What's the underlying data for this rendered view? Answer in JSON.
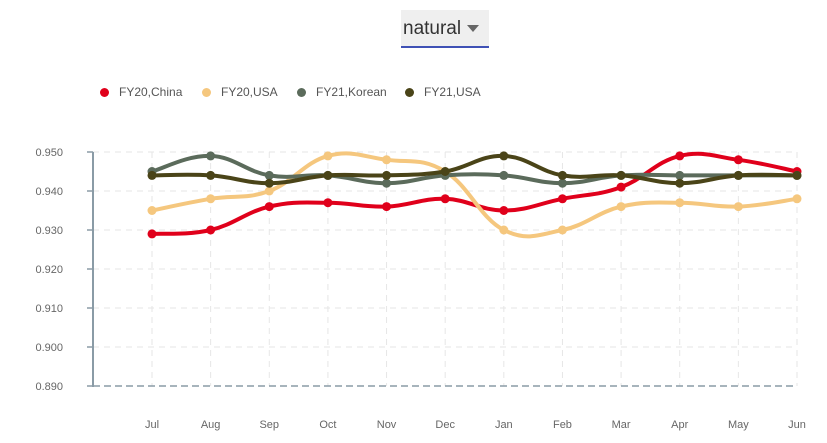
{
  "scale_select": {
    "value": "natural"
  },
  "chart_data": {
    "type": "line",
    "categories": [
      "Jul",
      "Aug",
      "Sep",
      "Oct",
      "Nov",
      "Dec",
      "Jan",
      "Feb",
      "Mar",
      "Apr",
      "May",
      "Jun"
    ],
    "ylim": [
      0.89,
      0.95
    ],
    "yticks": [
      "0.950",
      "0.940",
      "0.930",
      "0.920",
      "0.910",
      "0.900",
      "0.890"
    ],
    "grid": true,
    "legend_position": "top-left",
    "series": [
      {
        "name": "FY20,China",
        "color": "#e0001b",
        "values": [
          0.929,
          0.93,
          0.936,
          0.937,
          0.936,
          0.938,
          0.935,
          0.938,
          0.941,
          0.949,
          0.948,
          0.945
        ]
      },
      {
        "name": "FY20,USA",
        "color": "#f5c77e",
        "values": [
          0.935,
          0.938,
          0.94,
          0.949,
          0.948,
          0.945,
          0.93,
          0.93,
          0.936,
          0.937,
          0.936,
          0.938
        ]
      },
      {
        "name": "FY21,Korean",
        "color": "#5b6b5b",
        "values": [
          0.945,
          0.949,
          0.944,
          0.944,
          0.942,
          0.944,
          0.944,
          0.942,
          0.944,
          0.944,
          0.944,
          0.944
        ]
      },
      {
        "name": "FY21,USA",
        "color": "#4a4418",
        "values": [
          0.944,
          0.944,
          0.942,
          0.944,
          0.944,
          0.945,
          0.949,
          0.944,
          0.944,
          0.942,
          0.944,
          0.944
        ]
      }
    ]
  }
}
